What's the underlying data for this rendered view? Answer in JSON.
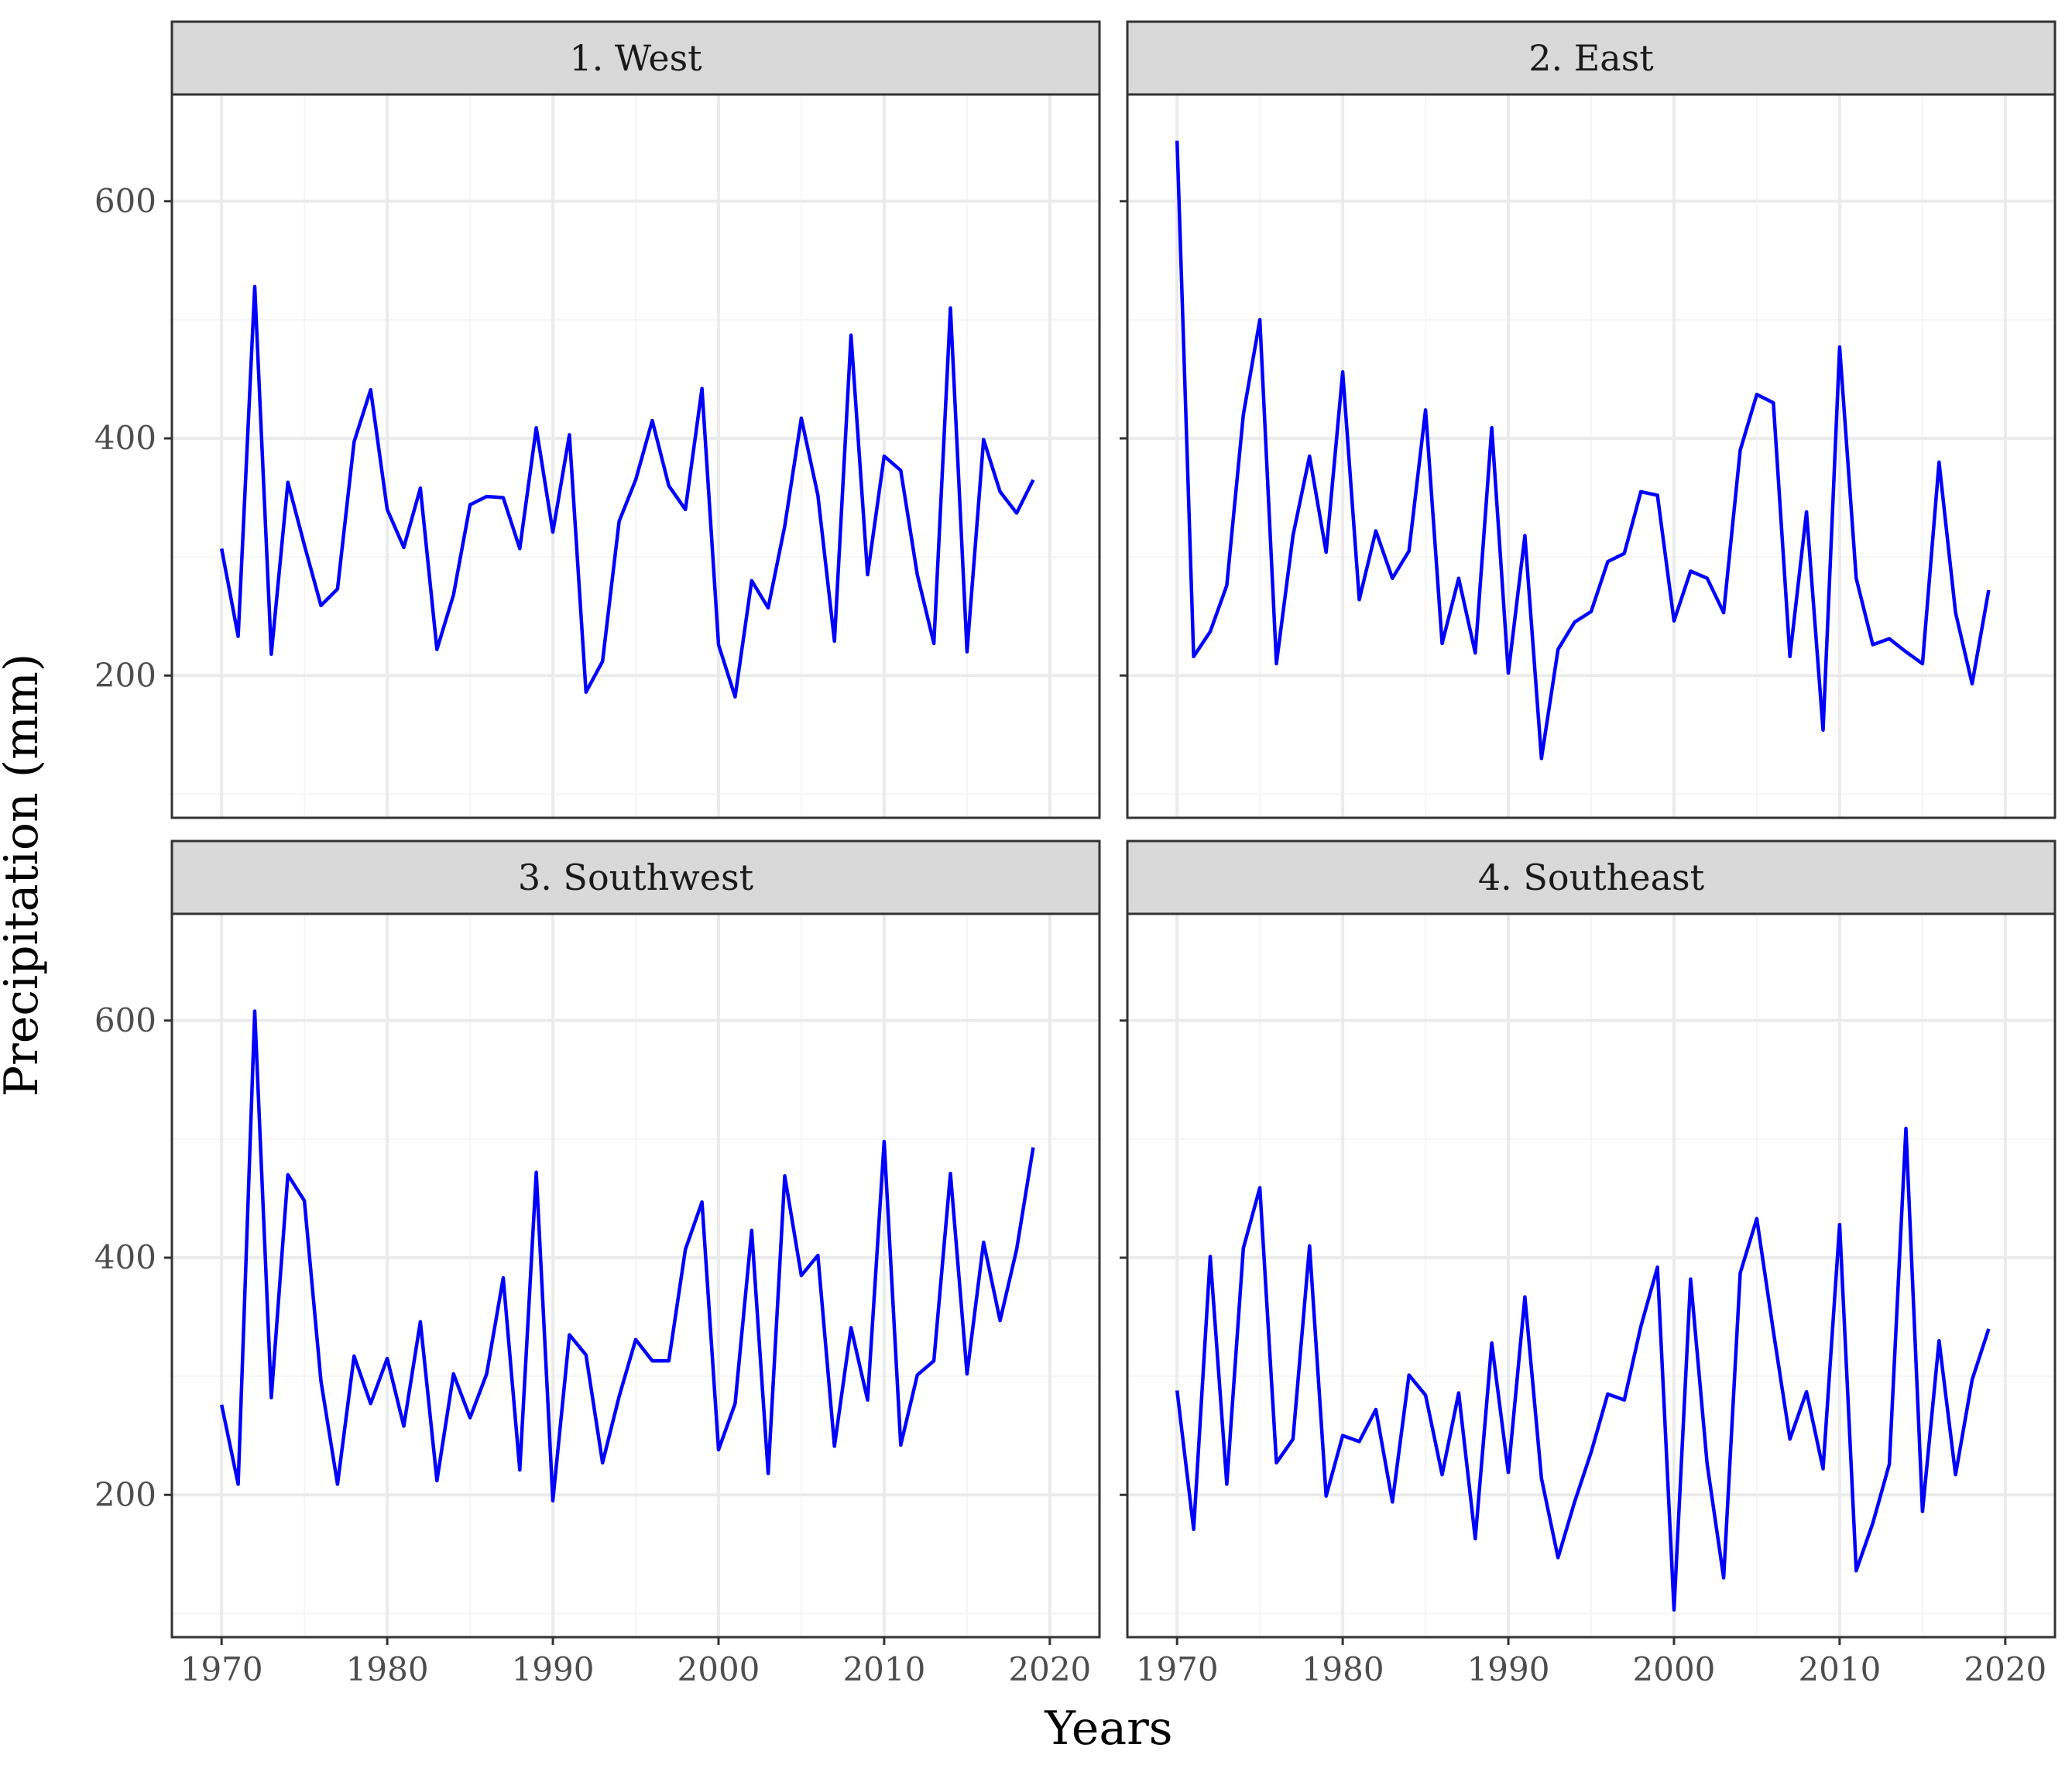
{
  "colors": {
    "line": "#0000ff",
    "strip_fill": "#d9d9d9",
    "panel_border": "#333333",
    "grid_major": "#ebebeb",
    "grid_minor": "#f5f5f5",
    "tick_text": "#4d4d4d"
  },
  "chart_data": {
    "type": "line",
    "facet_layout": "2x2",
    "xlabel": "Years",
    "ylabel": "Precipitation (mm)",
    "xlim": [
      1967,
      2023
    ],
    "ylim": [
      80,
      690
    ],
    "x_ticks": [
      1970,
      1980,
      1990,
      2000,
      2010,
      2020
    ],
    "y_ticks": [
      200,
      400,
      600
    ],
    "grid": true,
    "x": [
      1970,
      1971,
      1972,
      1973,
      1974,
      1975,
      1976,
      1977,
      1978,
      1979,
      1980,
      1981,
      1982,
      1983,
      1984,
      1985,
      1986,
      1987,
      1988,
      1989,
      1990,
      1991,
      1992,
      1993,
      1994,
      1995,
      1996,
      1997,
      1998,
      1999,
      2000,
      2001,
      2002,
      2003,
      2004,
      2005,
      2006,
      2007,
      2008,
      2009,
      2010,
      2011,
      2012,
      2013,
      2014,
      2015,
      2016,
      2017,
      2018,
      2019
    ],
    "panels": [
      {
        "title": "1. West",
        "values": [
          307,
          233,
          528,
          218,
          363,
          310,
          259,
          273,
          397,
          441,
          340,
          308,
          358,
          222,
          268,
          344,
          351,
          350,
          307,
          409,
          321,
          403,
          186,
          212,
          330,
          365,
          415,
          360,
          340,
          442,
          226,
          182,
          280,
          257,
          326,
          417,
          352,
          229,
          487,
          285,
          385,
          373,
          285,
          227,
          510,
          220,
          399,
          355,
          337,
          365
        ]
      },
      {
        "title": "2. East",
        "values": [
          651,
          216,
          237,
          276,
          420,
          500,
          210,
          318,
          385,
          304,
          456,
          264,
          322,
          282,
          305,
          424,
          227,
          282,
          219,
          409,
          202,
          318,
          130,
          222,
          245,
          254,
          296,
          303,
          355,
          352,
          246,
          288,
          282,
          253,
          390,
          437,
          430,
          216,
          338,
          154,
          477,
          282,
          226,
          231,
          220,
          210,
          380,
          253,
          193,
          272
        ]
      },
      {
        "title": "3. Southwest",
        "values": [
          276,
          209,
          608,
          282,
          470,
          448,
          296,
          209,
          317,
          277,
          315,
          258,
          346,
          212,
          302,
          265,
          302,
          383,
          221,
          472,
          195,
          335,
          318,
          227,
          283,
          331,
          313,
          313,
          407,
          447,
          238,
          277,
          423,
          218,
          469,
          385,
          402,
          241,
          341,
          280,
          498,
          242,
          301,
          313,
          471,
          302,
          413,
          347,
          407,
          493
        ]
      },
      {
        "title": "4. Southeast",
        "values": [
          288,
          171,
          401,
          209,
          408,
          459,
          227,
          247,
          410,
          199,
          250,
          245,
          272,
          194,
          301,
          284,
          217,
          286,
          163,
          328,
          219,
          367,
          214,
          147,
          194,
          236,
          285,
          280,
          342,
          392,
          103,
          382,
          226,
          130,
          387,
          433,
          338,
          247,
          287,
          222,
          428,
          136,
          176,
          226,
          509,
          186,
          330,
          217,
          297,
          340
        ]
      }
    ]
  }
}
